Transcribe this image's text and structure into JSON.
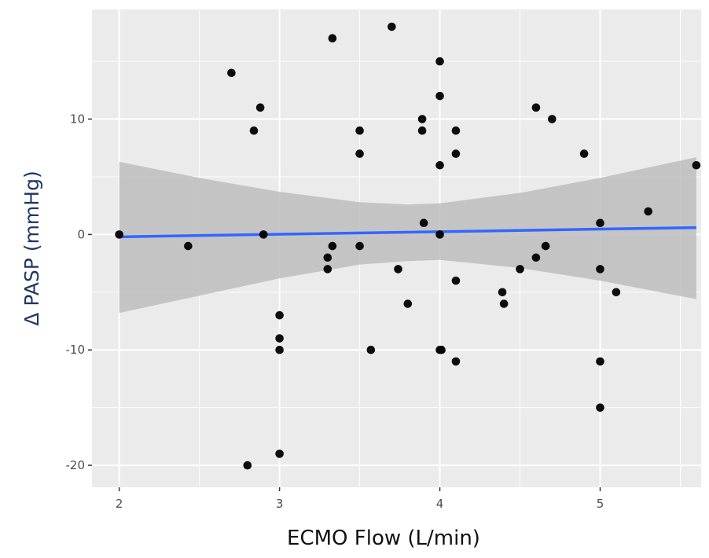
{
  "chart_data": {
    "type": "scatter",
    "title": "",
    "xlabel": "ECMO Flow (L/min)",
    "ylabel": "Δ PASP (mmHg)",
    "xlim": [
      1.83,
      5.63
    ],
    "ylim": [
      -21.9,
      19.5
    ],
    "x_ticks": [
      2,
      3,
      4,
      5
    ],
    "x_tick_labels": [
      "2",
      "3",
      "4",
      "5"
    ],
    "y_ticks": [
      -20,
      -10,
      0,
      10
    ],
    "y_tick_labels": [
      "-20",
      "-10",
      "0",
      "10"
    ],
    "grid": true,
    "series": [
      {
        "name": "observations",
        "kind": "points",
        "points": [
          {
            "x": 2.0,
            "y": 0
          },
          {
            "x": 2.43,
            "y": -1
          },
          {
            "x": 2.7,
            "y": 14
          },
          {
            "x": 2.8,
            "y": -20
          },
          {
            "x": 2.84,
            "y": 9
          },
          {
            "x": 2.88,
            "y": 11
          },
          {
            "x": 2.9,
            "y": 0
          },
          {
            "x": 3.0,
            "y": -7
          },
          {
            "x": 3.0,
            "y": -9
          },
          {
            "x": 3.0,
            "y": -10
          },
          {
            "x": 3.0,
            "y": -19
          },
          {
            "x": 3.3,
            "y": -2
          },
          {
            "x": 3.3,
            "y": -3
          },
          {
            "x": 3.33,
            "y": -1
          },
          {
            "x": 3.33,
            "y": 17
          },
          {
            "x": 3.5,
            "y": 9
          },
          {
            "x": 3.5,
            "y": 7
          },
          {
            "x": 3.5,
            "y": -1
          },
          {
            "x": 3.57,
            "y": -10
          },
          {
            "x": 3.7,
            "y": 18
          },
          {
            "x": 3.74,
            "y": -3
          },
          {
            "x": 3.8,
            "y": -6
          },
          {
            "x": 3.89,
            "y": 10
          },
          {
            "x": 3.89,
            "y": 9
          },
          {
            "x": 3.9,
            "y": 1
          },
          {
            "x": 4.0,
            "y": 15
          },
          {
            "x": 4.0,
            "y": 12
          },
          {
            "x": 4.0,
            "y": 6
          },
          {
            "x": 4.0,
            "y": 0
          },
          {
            "x": 4.0,
            "y": -10
          },
          {
            "x": 4.01,
            "y": -10
          },
          {
            "x": 4.1,
            "y": 9
          },
          {
            "x": 4.1,
            "y": 7
          },
          {
            "x": 4.1,
            "y": -4
          },
          {
            "x": 4.1,
            "y": -11
          },
          {
            "x": 4.39,
            "y": -5
          },
          {
            "x": 4.4,
            "y": -6
          },
          {
            "x": 4.5,
            "y": -3
          },
          {
            "x": 4.6,
            "y": 11
          },
          {
            "x": 4.6,
            "y": -2
          },
          {
            "x": 4.66,
            "y": -1
          },
          {
            "x": 4.7,
            "y": 10
          },
          {
            "x": 4.9,
            "y": 7
          },
          {
            "x": 5.0,
            "y": 1
          },
          {
            "x": 5.0,
            "y": -3
          },
          {
            "x": 5.0,
            "y": -11
          },
          {
            "x": 5.0,
            "y": -15
          },
          {
            "x": 5.1,
            "y": -5
          },
          {
            "x": 5.3,
            "y": 2
          },
          {
            "x": 5.6,
            "y": 6
          }
        ],
        "color": "#000000"
      },
      {
        "name": "linear fit",
        "kind": "line",
        "x": [
          2.0,
          5.6
        ],
        "y": [
          -0.2,
          0.6
        ],
        "color": "#3366ff"
      },
      {
        "name": "95% confidence band",
        "kind": "band",
        "x": [
          2.0,
          2.5,
          3.0,
          3.5,
          3.8,
          4.0,
          4.5,
          5.0,
          5.6
        ],
        "lower": [
          -6.8,
          -5.3,
          -3.8,
          -2.6,
          -2.3,
          -2.2,
          -2.9,
          -4.0,
          -5.6
        ],
        "upper": [
          6.3,
          4.9,
          3.7,
          2.8,
          2.6,
          2.7,
          3.6,
          4.9,
          6.7
        ],
        "color": "#bdbdbd"
      }
    ]
  },
  "colors": {
    "panel_background": "#ebebeb",
    "grid_major": "#ffffff",
    "point": "#000000",
    "fit_line": "#3366ff",
    "band": "#bdbdbd",
    "axis_title_y": "#1f3864",
    "tick_text": "#4d4d4d"
  }
}
